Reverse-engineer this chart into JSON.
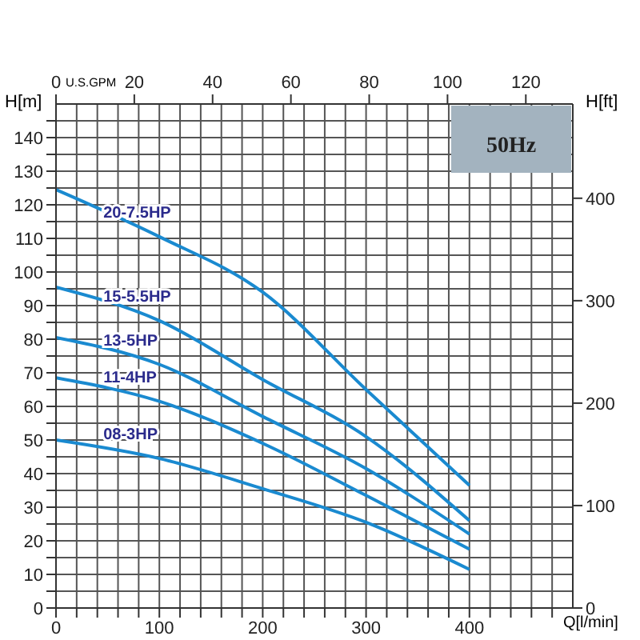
{
  "chart_data": {
    "type": "line",
    "xlabel": "Q[l/min]",
    "ylabel": "H[m]",
    "y2label": "H[ft]",
    "x2label": "U.S.GPM",
    "annotations": [
      "50Hz"
    ],
    "x": [
      0,
      100,
      200,
      300,
      400
    ],
    "series": [
      {
        "name": "20-7.5HP",
        "color": "#1a8ad0",
        "values": [
          124.5,
          110.5,
          94,
          65,
          36.5
        ]
      },
      {
        "name": "15-5.5HP",
        "color": "#1a8ad0",
        "values": [
          95.5,
          85.5,
          68,
          51,
          26
        ]
      },
      {
        "name": "13-5HP",
        "color": "#1a8ad0",
        "values": [
          80.5,
          72.5,
          57,
          41.5,
          22
        ]
      },
      {
        "name": "11-4HP",
        "color": "#1a8ad0",
        "values": [
          68.5,
          61.5,
          49,
          33.5,
          17.5
        ]
      },
      {
        "name": "08-3HP",
        "color": "#1a8ad0",
        "values": [
          50,
          44.5,
          35.5,
          25.5,
          11.5
        ]
      }
    ],
    "xlim": [
      0,
      500
    ],
    "xticks": [
      0,
      {
        "value": 20,
        "label": null
      },
      {
        "value": 40,
        "label": null
      },
      {
        "value": 60,
        "label": null
      },
      {
        "value": 80,
        "label": null
      },
      100,
      {
        "value": 120,
        "label": null
      },
      {
        "value": 140,
        "label": null
      },
      {
        "value": 160,
        "label": null
      },
      {
        "value": 180,
        "label": null
      },
      200,
      {
        "value": 220,
        "label": null
      },
      {
        "value": 240,
        "label": null
      },
      {
        "value": 260,
        "label": null
      },
      {
        "value": 280,
        "label": null
      },
      300,
      {
        "value": 320,
        "label": null
      },
      {
        "value": 340,
        "label": null
      },
      {
        "value": 360,
        "label": null
      },
      {
        "value": 380,
        "label": null
      },
      400,
      {
        "value": 420,
        "label": null
      },
      {
        "value": 440,
        "label": null
      },
      {
        "value": 460,
        "label": null
      },
      {
        "value": 480,
        "label": null
      }
    ],
    "ylim": [
      0,
      150
    ],
    "yticks": [
      0,
      {
        "value": 5,
        "label": null
      },
      10,
      {
        "value": 15,
        "label": null
      },
      20,
      {
        "value": 25,
        "label": null
      },
      30,
      {
        "value": 35,
        "label": null
      },
      40,
      {
        "value": 45,
        "label": null
      },
      50,
      {
        "value": 55,
        "label": null
      },
      60,
      {
        "value": 65,
        "label": null
      },
      70,
      {
        "value": 75,
        "label": null
      },
      80,
      {
        "value": 85,
        "label": null
      },
      90,
      {
        "value": 95,
        "label": null
      },
      100,
      {
        "value": 105,
        "label": null
      },
      110,
      {
        "value": 115,
        "label": null
      },
      120,
      {
        "value": 125,
        "label": null
      },
      130,
      {
        "value": 135,
        "label": null
      },
      140,
      {
        "value": 145,
        "label": null
      }
    ],
    "y2lim": [
      0,
      492
    ],
    "y2ticks": [
      0,
      100,
      200,
      300,
      400
    ],
    "x2lim": [
      0,
      132
    ],
    "x2ticks": [
      0,
      20,
      40,
      60,
      80,
      100,
      120
    ],
    "grid": true,
    "marker": "none",
    "line_style": "solid"
  }
}
